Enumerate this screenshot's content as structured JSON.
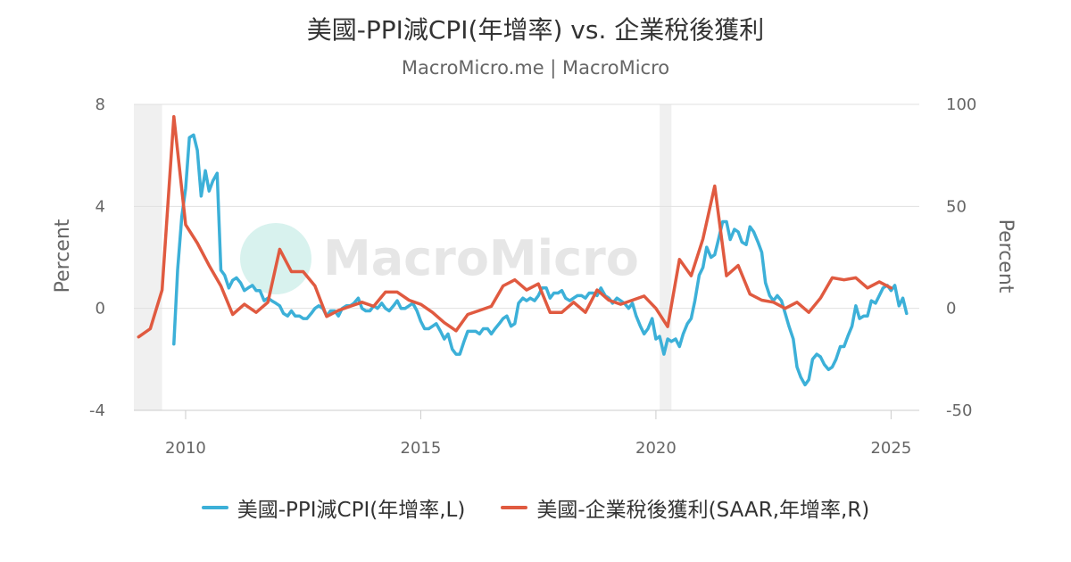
{
  "chart_data": {
    "type": "line",
    "title": "美國-PPI減CPI(年增率) vs. 企業稅後獲利",
    "subtitle": "MacroMicro.me | MacroMicro",
    "watermark": "MacroMicro",
    "ylabel_left": "Percent",
    "ylabel_right": "Percent",
    "ylim_left": [
      -4,
      8
    ],
    "ylim_right": [
      -50,
      100
    ],
    "yticks_left": [
      "8",
      "4",
      "0",
      "-4"
    ],
    "yticks_right": [
      "100",
      "50",
      "0",
      "-50"
    ],
    "xlim": [
      2008.9,
      2025.6
    ],
    "xticks": [
      "2010",
      "2015",
      "2020",
      "2025"
    ],
    "grid": true,
    "legend_position": "bottom",
    "recessions": [
      [
        2008.9,
        2009.5
      ],
      [
        2020.08,
        2020.33
      ]
    ],
    "series": [
      {
        "name": "美國-PPI減CPI(年增率,L)",
        "axis": "left",
        "color": "#3cb0d8",
        "points": [
          [
            2009.75,
            -1.4
          ],
          [
            2009.83,
            1.5
          ],
          [
            2009.92,
            3.6
          ],
          [
            2010.0,
            4.7
          ],
          [
            2010.08,
            6.7
          ],
          [
            2010.17,
            6.8
          ],
          [
            2010.25,
            6.2
          ],
          [
            2010.33,
            4.4
          ],
          [
            2010.42,
            5.4
          ],
          [
            2010.5,
            4.6
          ],
          [
            2010.58,
            5.0
          ],
          [
            2010.67,
            5.3
          ],
          [
            2010.75,
            1.5
          ],
          [
            2010.83,
            1.3
          ],
          [
            2010.92,
            0.8
          ],
          [
            2011.0,
            1.1
          ],
          [
            2011.08,
            1.2
          ],
          [
            2011.17,
            1.0
          ],
          [
            2011.25,
            0.7
          ],
          [
            2011.33,
            0.8
          ],
          [
            2011.42,
            0.9
          ],
          [
            2011.5,
            0.7
          ],
          [
            2011.58,
            0.7
          ],
          [
            2011.67,
            0.3
          ],
          [
            2011.75,
            0.4
          ],
          [
            2011.83,
            0.3
          ],
          [
            2011.92,
            0.2
          ],
          [
            2012.0,
            0.1
          ],
          [
            2012.08,
            -0.2
          ],
          [
            2012.17,
            -0.3
          ],
          [
            2012.25,
            -0.1
          ],
          [
            2012.33,
            -0.3
          ],
          [
            2012.42,
            -0.3
          ],
          [
            2012.5,
            -0.4
          ],
          [
            2012.58,
            -0.4
          ],
          [
            2012.67,
            -0.2
          ],
          [
            2012.75,
            0.0
          ],
          [
            2012.83,
            0.1
          ],
          [
            2012.92,
            0.0
          ],
          [
            2013.0,
            -0.3
          ],
          [
            2013.08,
            -0.1
          ],
          [
            2013.17,
            -0.1
          ],
          [
            2013.25,
            -0.3
          ],
          [
            2013.33,
            0.0
          ],
          [
            2013.42,
            0.1
          ],
          [
            2013.5,
            0.1
          ],
          [
            2013.58,
            0.2
          ],
          [
            2013.67,
            0.4
          ],
          [
            2013.75,
            0.0
          ],
          [
            2013.83,
            -0.1
          ],
          [
            2013.92,
            -0.1
          ],
          [
            2014.0,
            0.1
          ],
          [
            2014.08,
            0.0
          ],
          [
            2014.17,
            0.2
          ],
          [
            2014.25,
            0.0
          ],
          [
            2014.33,
            -0.1
          ],
          [
            2014.42,
            0.1
          ],
          [
            2014.5,
            0.3
          ],
          [
            2014.58,
            0.0
          ],
          [
            2014.67,
            0.0
          ],
          [
            2014.75,
            0.1
          ],
          [
            2014.83,
            0.2
          ],
          [
            2014.92,
            -0.1
          ],
          [
            2015.0,
            -0.5
          ],
          [
            2015.08,
            -0.8
          ],
          [
            2015.17,
            -0.8
          ],
          [
            2015.25,
            -0.7
          ],
          [
            2015.33,
            -0.6
          ],
          [
            2015.42,
            -0.9
          ],
          [
            2015.5,
            -1.2
          ],
          [
            2015.58,
            -1.0
          ],
          [
            2015.67,
            -1.6
          ],
          [
            2015.75,
            -1.8
          ],
          [
            2015.83,
            -1.8
          ],
          [
            2015.92,
            -1.3
          ],
          [
            2016.0,
            -0.9
          ],
          [
            2016.08,
            -0.9
          ],
          [
            2016.17,
            -0.9
          ],
          [
            2016.25,
            -1.0
          ],
          [
            2016.33,
            -0.8
          ],
          [
            2016.42,
            -0.8
          ],
          [
            2016.5,
            -1.0
          ],
          [
            2016.58,
            -0.8
          ],
          [
            2016.67,
            -0.6
          ],
          [
            2016.75,
            -0.4
          ],
          [
            2016.83,
            -0.3
          ],
          [
            2016.92,
            -0.7
          ],
          [
            2017.0,
            -0.6
          ],
          [
            2017.08,
            0.2
          ],
          [
            2017.17,
            0.4
          ],
          [
            2017.25,
            0.3
          ],
          [
            2017.33,
            0.4
          ],
          [
            2017.42,
            0.3
          ],
          [
            2017.5,
            0.5
          ],
          [
            2017.58,
            0.8
          ],
          [
            2017.67,
            0.8
          ],
          [
            2017.75,
            0.4
          ],
          [
            2017.83,
            0.6
          ],
          [
            2017.92,
            0.6
          ],
          [
            2018.0,
            0.7
          ],
          [
            2018.08,
            0.4
          ],
          [
            2018.17,
            0.3
          ],
          [
            2018.25,
            0.4
          ],
          [
            2018.33,
            0.5
          ],
          [
            2018.42,
            0.5
          ],
          [
            2018.5,
            0.4
          ],
          [
            2018.58,
            0.6
          ],
          [
            2018.67,
            0.6
          ],
          [
            2018.75,
            0.5
          ],
          [
            2018.83,
            0.8
          ],
          [
            2018.92,
            0.5
          ],
          [
            2019.0,
            0.4
          ],
          [
            2019.08,
            0.2
          ],
          [
            2019.17,
            0.4
          ],
          [
            2019.25,
            0.3
          ],
          [
            2019.33,
            0.2
          ],
          [
            2019.42,
            0.0
          ],
          [
            2019.5,
            0.2
          ],
          [
            2019.58,
            -0.3
          ],
          [
            2019.67,
            -0.7
          ],
          [
            2019.75,
            -1.0
          ],
          [
            2019.83,
            -0.8
          ],
          [
            2019.92,
            -0.4
          ],
          [
            2020.0,
            -1.2
          ],
          [
            2020.08,
            -1.1
          ],
          [
            2020.17,
            -1.8
          ],
          [
            2020.25,
            -1.2
          ],
          [
            2020.33,
            -1.3
          ],
          [
            2020.42,
            -1.2
          ],
          [
            2020.5,
            -1.5
          ],
          [
            2020.58,
            -1.0
          ],
          [
            2020.67,
            -0.6
          ],
          [
            2020.75,
            -0.4
          ],
          [
            2020.83,
            0.3
          ],
          [
            2020.92,
            1.3
          ],
          [
            2021.0,
            1.6
          ],
          [
            2021.08,
            2.4
          ],
          [
            2021.17,
            2.0
          ],
          [
            2021.25,
            2.1
          ],
          [
            2021.33,
            2.7
          ],
          [
            2021.42,
            3.4
          ],
          [
            2021.5,
            3.4
          ],
          [
            2021.58,
            2.7
          ],
          [
            2021.67,
            3.1
          ],
          [
            2021.75,
            3.0
          ],
          [
            2021.83,
            2.6
          ],
          [
            2021.92,
            2.5
          ],
          [
            2022.0,
            3.2
          ],
          [
            2022.08,
            3.0
          ],
          [
            2022.17,
            2.6
          ],
          [
            2022.25,
            2.2
          ],
          [
            2022.33,
            1.0
          ],
          [
            2022.42,
            0.5
          ],
          [
            2022.5,
            0.3
          ],
          [
            2022.58,
            0.5
          ],
          [
            2022.67,
            0.3
          ],
          [
            2022.75,
            -0.2
          ],
          [
            2022.83,
            -0.7
          ],
          [
            2022.92,
            -1.2
          ],
          [
            2023.0,
            -2.3
          ],
          [
            2023.08,
            -2.7
          ],
          [
            2023.17,
            -3.0
          ],
          [
            2023.25,
            -2.8
          ],
          [
            2023.33,
            -2.0
          ],
          [
            2023.42,
            -1.8
          ],
          [
            2023.5,
            -1.9
          ],
          [
            2023.58,
            -2.2
          ],
          [
            2023.67,
            -2.4
          ],
          [
            2023.75,
            -2.3
          ],
          [
            2023.83,
            -2.0
          ],
          [
            2023.92,
            -1.5
          ],
          [
            2024.0,
            -1.5
          ],
          [
            2024.08,
            -1.1
          ],
          [
            2024.17,
            -0.7
          ],
          [
            2024.25,
            0.1
          ],
          [
            2024.33,
            -0.4
          ],
          [
            2024.42,
            -0.3
          ],
          [
            2024.5,
            -0.3
          ],
          [
            2024.58,
            0.3
          ],
          [
            2024.67,
            0.2
          ],
          [
            2024.75,
            0.5
          ],
          [
            2024.83,
            0.8
          ],
          [
            2024.92,
            0.9
          ],
          [
            2025.0,
            0.7
          ],
          [
            2025.08,
            0.9
          ],
          [
            2025.17,
            0.1
          ],
          [
            2025.25,
            0.4
          ],
          [
            2025.33,
            -0.2
          ]
        ]
      },
      {
        "name": "美國-企業稅後獲利(SAAR,年增率,R)",
        "axis": "right",
        "color": "#e05a40",
        "points": [
          [
            2009.0,
            -14
          ],
          [
            2009.25,
            -10
          ],
          [
            2009.5,
            9
          ],
          [
            2009.75,
            94
          ],
          [
            2010.0,
            41
          ],
          [
            2010.25,
            32
          ],
          [
            2010.5,
            21
          ],
          [
            2010.75,
            11
          ],
          [
            2011.0,
            -3
          ],
          [
            2011.25,
            2
          ],
          [
            2011.5,
            -2
          ],
          [
            2011.75,
            3
          ],
          [
            2012.0,
            29
          ],
          [
            2012.25,
            18
          ],
          [
            2012.5,
            18
          ],
          [
            2012.75,
            11
          ],
          [
            2013.0,
            -4
          ],
          [
            2013.25,
            -1
          ],
          [
            2013.5,
            1
          ],
          [
            2013.75,
            3
          ],
          [
            2014.0,
            1
          ],
          [
            2014.25,
            8
          ],
          [
            2014.5,
            8
          ],
          [
            2014.75,
            4
          ],
          [
            2015.0,
            2
          ],
          [
            2015.25,
            -2
          ],
          [
            2015.5,
            -7
          ],
          [
            2015.75,
            -11
          ],
          [
            2016.0,
            -3
          ],
          [
            2016.25,
            -1
          ],
          [
            2016.5,
            1
          ],
          [
            2016.75,
            11
          ],
          [
            2017.0,
            14
          ],
          [
            2017.25,
            9
          ],
          [
            2017.5,
            12
          ],
          [
            2017.75,
            -2
          ],
          [
            2018.0,
            -2
          ],
          [
            2018.25,
            3
          ],
          [
            2018.5,
            -2
          ],
          [
            2018.75,
            9
          ],
          [
            2019.0,
            4
          ],
          [
            2019.25,
            2
          ],
          [
            2019.5,
            4
          ],
          [
            2019.75,
            6
          ],
          [
            2020.0,
            0
          ],
          [
            2020.25,
            -9
          ],
          [
            2020.5,
            24
          ],
          [
            2020.75,
            16
          ],
          [
            2021.0,
            34
          ],
          [
            2021.25,
            60
          ],
          [
            2021.5,
            16
          ],
          [
            2021.75,
            21
          ],
          [
            2022.0,
            7
          ],
          [
            2022.25,
            4
          ],
          [
            2022.5,
            3
          ],
          [
            2022.75,
            0
          ],
          [
            2023.0,
            3
          ],
          [
            2023.25,
            -2
          ],
          [
            2023.5,
            5
          ],
          [
            2023.75,
            15
          ],
          [
            2024.0,
            14
          ],
          [
            2024.25,
            15
          ],
          [
            2024.5,
            10
          ],
          [
            2024.75,
            13
          ],
          [
            2025.0,
            10
          ]
        ]
      }
    ]
  }
}
